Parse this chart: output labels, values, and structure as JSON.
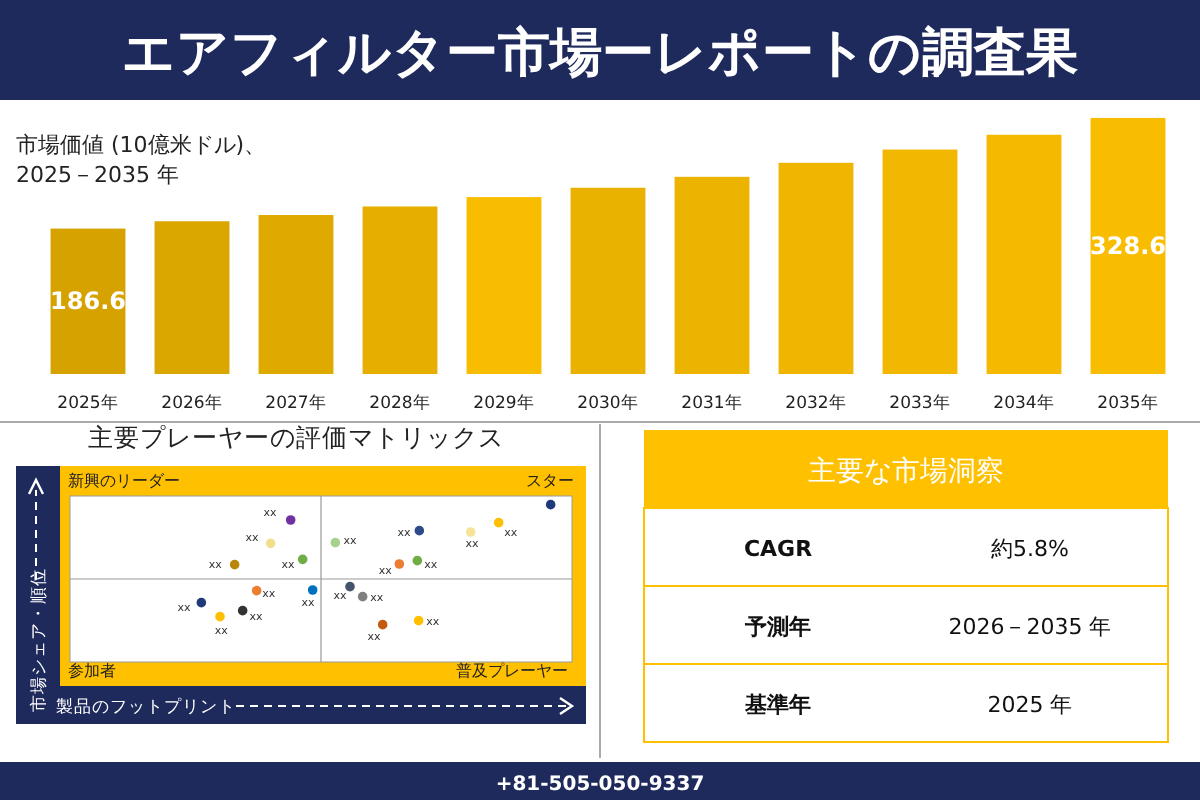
{
  "chart_data": [
    {
      "type": "bar",
      "title": "エアフィルター市場ーレポートの調査果",
      "subtitle": "市場価値 (10億米ドル)、\n2025－2035 年",
      "categories": [
        "2025年",
        "2026年",
        "2027年",
        "2028年",
        "2029年",
        "2030年",
        "2031年",
        "2032年",
        "2033年",
        "2034年",
        "2035年"
      ],
      "values": [
        186.6,
        196,
        204,
        215,
        227,
        239,
        253,
        271,
        288,
        307,
        328.6
      ],
      "value_labels": [
        "186.6",
        null,
        null,
        null,
        null,
        null,
        null,
        null,
        null,
        null,
        "328.6"
      ],
      "colors": [
        "#d6a200",
        "#daa600",
        "#dfaa00",
        "#e6af00",
        "#f8bc00",
        "#e9b100",
        "#ecb300",
        "#efb500",
        "#f2b700",
        "#f5b900",
        "#f8bc00"
      ],
      "annotations": [
        "+81-505-050-9337"
      ]
    },
    {
      "type": "other",
      "title": "主要プレーヤーの評価マトリックス",
      "xlabel": "製品のフットプリント",
      "ylabel": "市場シェア・順位",
      "annotations": [
        "新興のリーダー",
        "スター",
        "参加者",
        "普及プレーヤー",
        "xx",
        "xx",
        "xx",
        "xx",
        "xx",
        "xx",
        "xx",
        "xx",
        "xx",
        "xx",
        "xx",
        "xx",
        "xx",
        "xx",
        "xx",
        "xx",
        "xx",
        "xx",
        "xx"
      ]
    },
    {
      "type": "other",
      "title": "主要な市場洞察",
      "annotations": [
        "CAGR",
        "約5.8%",
        "予測年",
        "2026－2035 年",
        "基準年",
        "2025 年"
      ]
    }
  ]
}
